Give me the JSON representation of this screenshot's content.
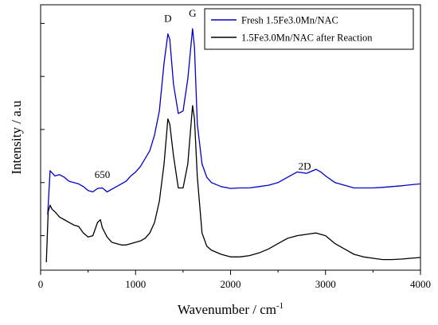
{
  "chart_data": {
    "type": "line",
    "xlabel": "Wavenumber / cm",
    "xlabel_superscript": "-1",
    "ylabel": "Intensity / a.u",
    "xlim": [
      0,
      4000
    ],
    "ylim": [
      0,
      100
    ],
    "x_ticks": [
      0,
      1000,
      2000,
      3000,
      4000
    ],
    "y_tick_values": [
      13,
      33,
      53,
      73,
      93
    ],
    "grid": false,
    "legend_position": "top-right",
    "annotations": [
      {
        "text": "D",
        "x": 1340,
        "y": 93.5
      },
      {
        "text": "G",
        "x": 1600,
        "y": 95.5
      },
      {
        "text": "650",
        "x": 650,
        "y": 34.8
      },
      {
        "text": "2D",
        "x": 2780,
        "y": 37.8
      }
    ],
    "series": [
      {
        "name": "Fresh 1.5Fe3.0Mn/NAC",
        "color": "#0000cc",
        "points": [
          [
            75,
            21
          ],
          [
            100,
            37.5
          ],
          [
            150,
            35.5
          ],
          [
            200,
            36
          ],
          [
            250,
            35
          ],
          [
            300,
            33.5
          ],
          [
            350,
            33
          ],
          [
            400,
            32.5
          ],
          [
            450,
            31.5
          ],
          [
            500,
            30
          ],
          [
            550,
            29.5
          ],
          [
            600,
            30.8
          ],
          [
            650,
            31
          ],
          [
            700,
            29.5
          ],
          [
            750,
            30.5
          ],
          [
            800,
            31.5
          ],
          [
            850,
            32.5
          ],
          [
            900,
            33.5
          ],
          [
            950,
            35.5
          ],
          [
            1000,
            37
          ],
          [
            1050,
            39
          ],
          [
            1100,
            42
          ],
          [
            1150,
            45
          ],
          [
            1200,
            51
          ],
          [
            1250,
            60
          ],
          [
            1300,
            78
          ],
          [
            1340,
            89
          ],
          [
            1360,
            87
          ],
          [
            1400,
            70
          ],
          [
            1450,
            59
          ],
          [
            1500,
            60
          ],
          [
            1550,
            72
          ],
          [
            1600,
            91
          ],
          [
            1620,
            84
          ],
          [
            1650,
            55
          ],
          [
            1700,
            40
          ],
          [
            1750,
            35
          ],
          [
            1800,
            33
          ],
          [
            1900,
            31.5
          ],
          [
            2000,
            30.8
          ],
          [
            2100,
            31
          ],
          [
            2200,
            31
          ],
          [
            2300,
            31.5
          ],
          [
            2400,
            32
          ],
          [
            2500,
            33
          ],
          [
            2600,
            35
          ],
          [
            2700,
            37
          ],
          [
            2800,
            36.5
          ],
          [
            2900,
            38
          ],
          [
            2950,
            37
          ],
          [
            3000,
            35.5
          ],
          [
            3100,
            33
          ],
          [
            3200,
            32
          ],
          [
            3300,
            31
          ],
          [
            3400,
            31
          ],
          [
            3500,
            31
          ],
          [
            3600,
            31.2
          ],
          [
            3700,
            31.5
          ],
          [
            3800,
            31.8
          ],
          [
            3900,
            32.2
          ],
          [
            4000,
            32.5
          ]
        ]
      },
      {
        "name": "1.5Fe3.0Mn/NAC after Reaction",
        "color": "#000000",
        "points": [
          [
            60,
            3
          ],
          [
            80,
            22
          ],
          [
            100,
            24.5
          ],
          [
            120,
            23
          ],
          [
            150,
            22
          ],
          [
            200,
            20
          ],
          [
            250,
            19
          ],
          [
            300,
            18
          ],
          [
            350,
            17
          ],
          [
            400,
            16.5
          ],
          [
            450,
            14
          ],
          [
            500,
            12.5
          ],
          [
            550,
            13
          ],
          [
            600,
            18
          ],
          [
            630,
            19
          ],
          [
            650,
            16
          ],
          [
            700,
            12.5
          ],
          [
            750,
            10.5
          ],
          [
            800,
            10
          ],
          [
            850,
            9.5
          ],
          [
            900,
            9.5
          ],
          [
            950,
            10
          ],
          [
            1000,
            10.5
          ],
          [
            1050,
            11
          ],
          [
            1100,
            12
          ],
          [
            1150,
            14
          ],
          [
            1200,
            18
          ],
          [
            1250,
            26
          ],
          [
            1300,
            40
          ],
          [
            1340,
            57
          ],
          [
            1360,
            55
          ],
          [
            1400,
            43
          ],
          [
            1450,
            31
          ],
          [
            1500,
            31
          ],
          [
            1550,
            40
          ],
          [
            1600,
            62
          ],
          [
            1620,
            57
          ],
          [
            1650,
            35
          ],
          [
            1700,
            14
          ],
          [
            1750,
            9
          ],
          [
            1800,
            7.5
          ],
          [
            1900,
            6
          ],
          [
            2000,
            5
          ],
          [
            2100,
            5
          ],
          [
            2200,
            5.5
          ],
          [
            2300,
            6.5
          ],
          [
            2400,
            8
          ],
          [
            2500,
            10
          ],
          [
            2600,
            12
          ],
          [
            2700,
            13
          ],
          [
            2800,
            13.5
          ],
          [
            2900,
            14
          ],
          [
            3000,
            13
          ],
          [
            3100,
            10
          ],
          [
            3200,
            8
          ],
          [
            3300,
            6
          ],
          [
            3400,
            5
          ],
          [
            3500,
            4.5
          ],
          [
            3600,
            4
          ],
          [
            3700,
            4
          ],
          [
            3800,
            4.2
          ],
          [
            3900,
            4.5
          ],
          [
            4000,
            4.8
          ]
        ]
      }
    ]
  }
}
